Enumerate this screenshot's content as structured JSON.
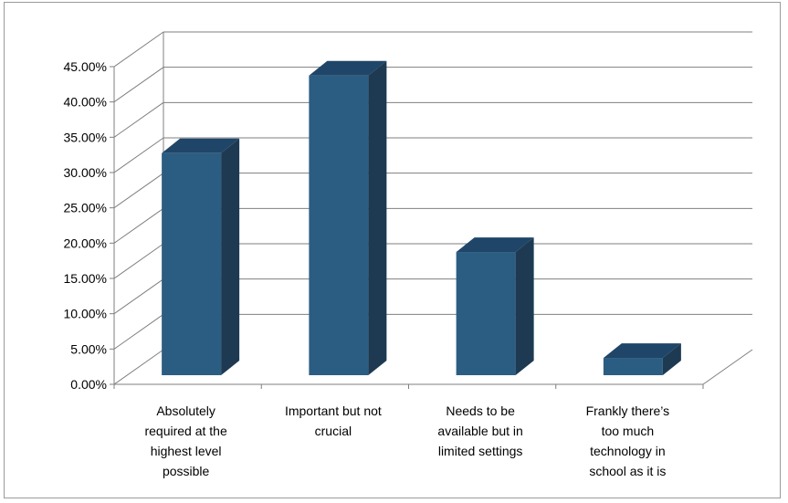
{
  "chart_data": {
    "type": "bar",
    "categories": [
      [
        "Absolutely",
        "required at the",
        "highest level",
        "possible"
      ],
      [
        "Important but not",
        "crucial"
      ],
      [
        "Needs to be",
        "available but in",
        "limited settings"
      ],
      [
        "Frankly there’s",
        "too much",
        "technology in",
        "school as it is"
      ]
    ],
    "values": [
      33.0,
      44.0,
      19.0,
      4.0
    ],
    "ylim": [
      0,
      45
    ],
    "yticks": [
      "0.00%",
      "5.00%",
      "10.00%",
      "15.00%",
      "20.00%",
      "25.00%",
      "30.00%",
      "35.00%",
      "40.00%",
      "45.00%"
    ],
    "grid": true,
    "legend": "none",
    "colors": {
      "front": "#2b5d82",
      "side": "#1d3a52",
      "top": "#1f4668",
      "grid": "#7f7f7f"
    }
  }
}
